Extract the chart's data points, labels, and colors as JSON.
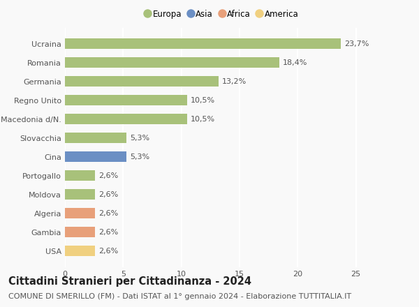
{
  "countries": [
    "Ucraina",
    "Romania",
    "Germania",
    "Regno Unito",
    "Macedonia d/N.",
    "Slovacchia",
    "Cina",
    "Portogallo",
    "Moldova",
    "Algeria",
    "Gambia",
    "USA"
  ],
  "values": [
    23.7,
    18.4,
    13.2,
    10.5,
    10.5,
    5.3,
    5.3,
    2.6,
    2.6,
    2.6,
    2.6,
    2.6
  ],
  "labels": [
    "23,7%",
    "18,4%",
    "13,2%",
    "10,5%",
    "10,5%",
    "5,3%",
    "5,3%",
    "2,6%",
    "2,6%",
    "2,6%",
    "2,6%",
    "2,6%"
  ],
  "colors": [
    "#a8c17a",
    "#a8c17a",
    "#a8c17a",
    "#a8c17a",
    "#a8c17a",
    "#a8c17a",
    "#6b8fc4",
    "#a8c17a",
    "#a8c17a",
    "#e8a07a",
    "#e8a07a",
    "#f0d080"
  ],
  "legend_labels": [
    "Europa",
    "Asia",
    "Africa",
    "America"
  ],
  "legend_colors": [
    "#a8c17a",
    "#6b8fc4",
    "#e8a07a",
    "#f0d080"
  ],
  "xlim": [
    0,
    27
  ],
  "xticks": [
    0,
    5,
    10,
    15,
    20,
    25
  ],
  "title": "Cittadini Stranieri per Cittadinanza - 2024",
  "subtitle": "COMUNE DI SMERILLO (FM) - Dati ISTAT al 1° gennaio 2024 - Elaborazione TUTTITALIA.IT",
  "bg_color": "#f9f9f9",
  "bar_height": 0.55,
  "title_fontsize": 10.5,
  "subtitle_fontsize": 8,
  "label_fontsize": 8,
  "tick_fontsize": 8,
  "legend_fontsize": 8.5
}
